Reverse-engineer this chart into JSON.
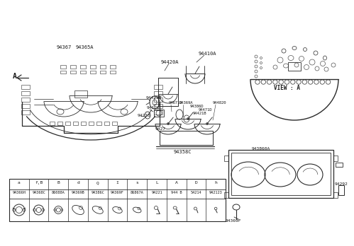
{
  "bg_color": "#ffffff",
  "line_color": "#2a2a2a",
  "text_color": "#1a1a1a",
  "part_labels_top": [
    "94367",
    "94365A"
  ],
  "label_A": "A",
  "view_label": "VIEW : A",
  "label_94420A": "94420A",
  "label_94410A": "94410A",
  "label_94421B_1": "94421B",
  "label_94671D": "94671D",
  "label_94369A": "94369A",
  "label_94386D": "94386D",
  "label_94471D": "94471D",
  "label_94421B_2": "94421B",
  "label_944820": "944820",
  "label_94120": "94120",
  "label_9427": "942",
  "label_94358C": "94358C",
  "label_94218": "94218",
  "label_943860A": "943860A",
  "label_942929": "942929",
  "label_94369F": "94369F",
  "bottom_headers": [
    "a",
    "f,B",
    "B",
    "d",
    "Q",
    "I",
    "s",
    "L",
    "A",
    "D",
    "h"
  ],
  "bottom_parts": [
    "94366H",
    "94368C",
    "86088A",
    "94369B",
    "94386C",
    "94369F",
    "86867A",
    "94221",
    "944 B",
    "54214",
    "942123"
  ]
}
